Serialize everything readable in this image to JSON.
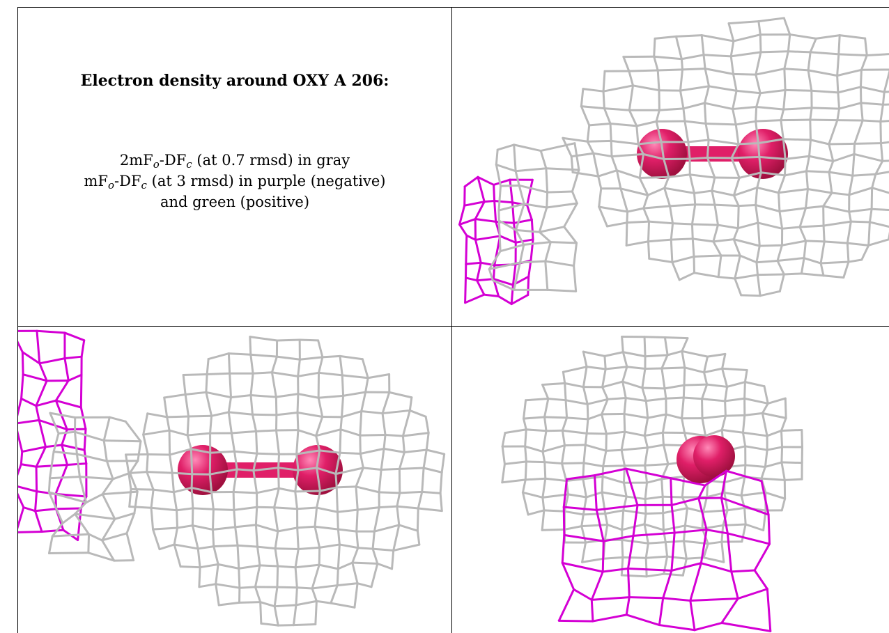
{
  "caption": {
    "title": "Electron density around OXY A 206:",
    "map1": {
      "pre": "2mF",
      "s1": "o",
      "mid": "-DF",
      "s2": "c",
      "post": " (at 0.7 rmsd) in gray"
    },
    "map2": {
      "pre": "mF",
      "s1": "o",
      "mid": "-DF",
      "s2": "c",
      "post": " (at 3 rmsd) in purple (negative)"
    },
    "map3": "and green (positive)"
  },
  "colors": {
    "gray_mesh": "#b9b9b9",
    "purple_mesh": "#d400d4",
    "ligand": "#e01f68",
    "border": "#000000"
  },
  "views": [
    {
      "name": "view-top-right",
      "ligand": "oxygen-dimer",
      "negative_density": "left-edge"
    },
    {
      "name": "view-bottom-left",
      "ligand": "oxygen-dimer",
      "negative_density": "left-edge"
    },
    {
      "name": "view-bottom-right",
      "ligand": "oxygen-dimer-end-on",
      "negative_density": "front-lower"
    }
  ]
}
